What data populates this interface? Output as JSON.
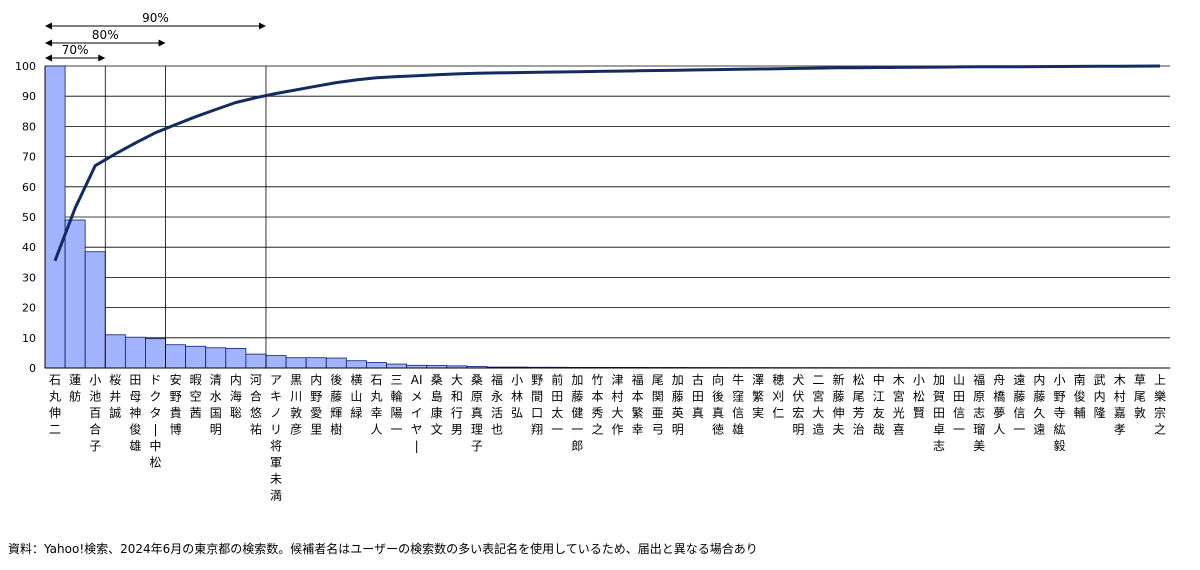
{
  "chart_data": {
    "type": "bar",
    "categories": [
      "石丸伸二",
      "蓮舫",
      "小池百合子",
      "桜井誠",
      "田母神俊雄",
      "ドクター・中松",
      "安野貴博",
      "暇空茜",
      "清水国明",
      "内海聡",
      "河合悠祐",
      "アキノリ将軍未満",
      "黒川敦彦",
      "内野愛里",
      "後藤輝樹",
      "横山緑",
      "石丸幸人",
      "三輪陽一",
      "AIメイヤー",
      "桑島康文",
      "大和行男",
      "桑原真理子",
      "福永活也",
      "小林弘",
      "野間口翔",
      "前田太一",
      "加藤健一郎",
      "竹本秀之",
      "津村大作",
      "福本繁幸",
      "尾関亜弓",
      "加藤英明",
      "古田真",
      "向後真徳",
      "牛窪信雄",
      "澤繁実",
      "穂刈仁",
      "犬伏宏明",
      "二宮大造",
      "新藤伸夫",
      "松尾芳治",
      "中江友哉",
      "木宮光喜",
      "小松賢",
      "加賀田卓志",
      "山田信一",
      "福原志瑠美",
      "舟橋夢人",
      "遠藤信一",
      "内藤久遠",
      "小野寺紘毅",
      "南俊輔",
      "武内隆",
      "木村嘉孝",
      "草尾敦",
      "上樂宗之"
    ],
    "category_columns": [
      [
        "石",
        "丸",
        "伸",
        "二"
      ],
      [
        "蓮",
        "舫"
      ],
      [
        "小",
        "池",
        "百",
        "合",
        "子"
      ],
      [
        "桜",
        "井",
        "誠"
      ],
      [
        "田",
        "母",
        "神",
        "俊",
        "雄"
      ],
      [
        "ド",
        "ク",
        "タ",
        "|",
        "中",
        "松"
      ],
      [
        "安",
        "野",
        "貴",
        "博"
      ],
      [
        "暇",
        "空",
        "茜"
      ],
      [
        "清",
        "水",
        "国",
        "明"
      ],
      [
        "内",
        "海",
        "聡"
      ],
      [
        "河",
        "合",
        "悠",
        "祐"
      ],
      [
        "ア",
        "キ",
        "ノ",
        "リ",
        "将",
        "軍",
        "未",
        "満"
      ],
      [
        "黒",
        "川",
        "敦",
        "彦"
      ],
      [
        "内",
        "野",
        "愛",
        "里"
      ],
      [
        "後",
        "藤",
        "輝",
        "樹"
      ],
      [
        "横",
        "山",
        "緑"
      ],
      [
        "石",
        "丸",
        "幸",
        "人"
      ],
      [
        "三",
        "輪",
        "陽",
        "一"
      ],
      [
        "AI",
        "メ",
        "イ",
        "ヤ",
        "|"
      ],
      [
        "桑",
        "島",
        "康",
        "文"
      ],
      [
        "大",
        "和",
        "行",
        "男"
      ],
      [
        "桑",
        "原",
        "真",
        "理",
        "子"
      ],
      [
        "福",
        "永",
        "活",
        "也"
      ],
      [
        "小",
        "林",
        "弘"
      ],
      [
        "野",
        "間",
        "口",
        "翔"
      ],
      [
        "前",
        "田",
        "太",
        "一"
      ],
      [
        "加",
        "藤",
        "健",
        "一",
        "郎"
      ],
      [
        "竹",
        "本",
        "秀",
        "之"
      ],
      [
        "津",
        "村",
        "大",
        "作"
      ],
      [
        "福",
        "本",
        "繁",
        "幸"
      ],
      [
        "尾",
        "関",
        "亜",
        "弓"
      ],
      [
        "加",
        "藤",
        "英",
        "明"
      ],
      [
        "古",
        "田",
        "真"
      ],
      [
        "向",
        "後",
        "真",
        "徳"
      ],
      [
        "牛",
        "窪",
        "信",
        "雄"
      ],
      [
        "澤",
        "繁",
        "実"
      ],
      [
        "穂",
        "刈",
        "仁"
      ],
      [
        "犬",
        "伏",
        "宏",
        "明"
      ],
      [
        "二",
        "宮",
        "大",
        "造"
      ],
      [
        "新",
        "藤",
        "伸",
        "夫"
      ],
      [
        "松",
        "尾",
        "芳",
        "治"
      ],
      [
        "中",
        "江",
        "友",
        "哉"
      ],
      [
        "木",
        "宮",
        "光",
        "喜"
      ],
      [
        "小",
        "松",
        "賢"
      ],
      [
        "加",
        "賀",
        "田",
        "卓",
        "志"
      ],
      [
        "山",
        "田",
        "信",
        "一"
      ],
      [
        "福",
        "原",
        "志",
        "瑠",
        "美"
      ],
      [
        "舟",
        "橋",
        "夢",
        "人"
      ],
      [
        "遠",
        "藤",
        "信",
        "一"
      ],
      [
        "内",
        "藤",
        "久",
        "遠"
      ],
      [
        "小",
        "野",
        "寺",
        "紘",
        "毅"
      ],
      [
        "南",
        "俊",
        "輔"
      ],
      [
        "武",
        "内",
        "隆"
      ],
      [
        "木",
        "村",
        "嘉",
        "孝"
      ],
      [
        "草",
        "尾",
        "敦"
      ],
      [
        "上",
        "樂",
        "宗",
        "之"
      ]
    ],
    "values": [
      100,
      49,
      38.5,
      11,
      10.2,
      9.7,
      7.7,
      7.2,
      6.7,
      6.5,
      4.6,
      4.1,
      3.4,
      3.4,
      3.3,
      2.4,
      1.8,
      1.3,
      0.9,
      0.8,
      0.7,
      0.5,
      0.3,
      0.3,
      0.25,
      0.25,
      0.2,
      0.2,
      0.2,
      0.2,
      0.18,
      0.18,
      0.16,
      0.15,
      0.14,
      0.14,
      0.13,
      0.12,
      0.12,
      0.11,
      0.1,
      0.1,
      0.09,
      0.09,
      0.08,
      0.08,
      0.07,
      0.07,
      0.06,
      0.06,
      0.05,
      0.05,
      0.04,
      0.04,
      0.03,
      0.03
    ],
    "cumulative": [
      35.5,
      52.9,
      67.0,
      70.9,
      74.5,
      77.9,
      80.6,
      83.2,
      85.6,
      87.9,
      89.5,
      90.9,
      92.1,
      93.3,
      94.5,
      95.4,
      96.1,
      96.5,
      96.8,
      97.1,
      97.4,
      97.6,
      97.7,
      97.8,
      97.9,
      98.0,
      98.1,
      98.2,
      98.3,
      98.4,
      98.5,
      98.6,
      98.7,
      98.8,
      98.9,
      99.0,
      99.1,
      99.2,
      99.3,
      99.4,
      99.45,
      99.5,
      99.55,
      99.6,
      99.65,
      99.7,
      99.72,
      99.75,
      99.78,
      99.8,
      99.83,
      99.86,
      99.9,
      99.93,
      99.96,
      100
    ],
    "ylim": [
      0,
      100
    ],
    "yticks": [
      0,
      10,
      20,
      30,
      40,
      50,
      60,
      70,
      80,
      90,
      100
    ],
    "grid": true,
    "thresholds": [
      {
        "label": "70%",
        "category_index": 3
      },
      {
        "label": "80%",
        "category_index": 6
      },
      {
        "label": "90%",
        "category_index": 11
      }
    ],
    "bar_color": "#a3b4ff",
    "bar_edge_color": "#0a1a7a",
    "line_color": "#142a60"
  },
  "caption": "資料：Yahoo!検索、2024年6月の東京都の検索数。候補者名はユーザーの検索数の多い表記名を使用しているため、届出と異なる場合あり"
}
